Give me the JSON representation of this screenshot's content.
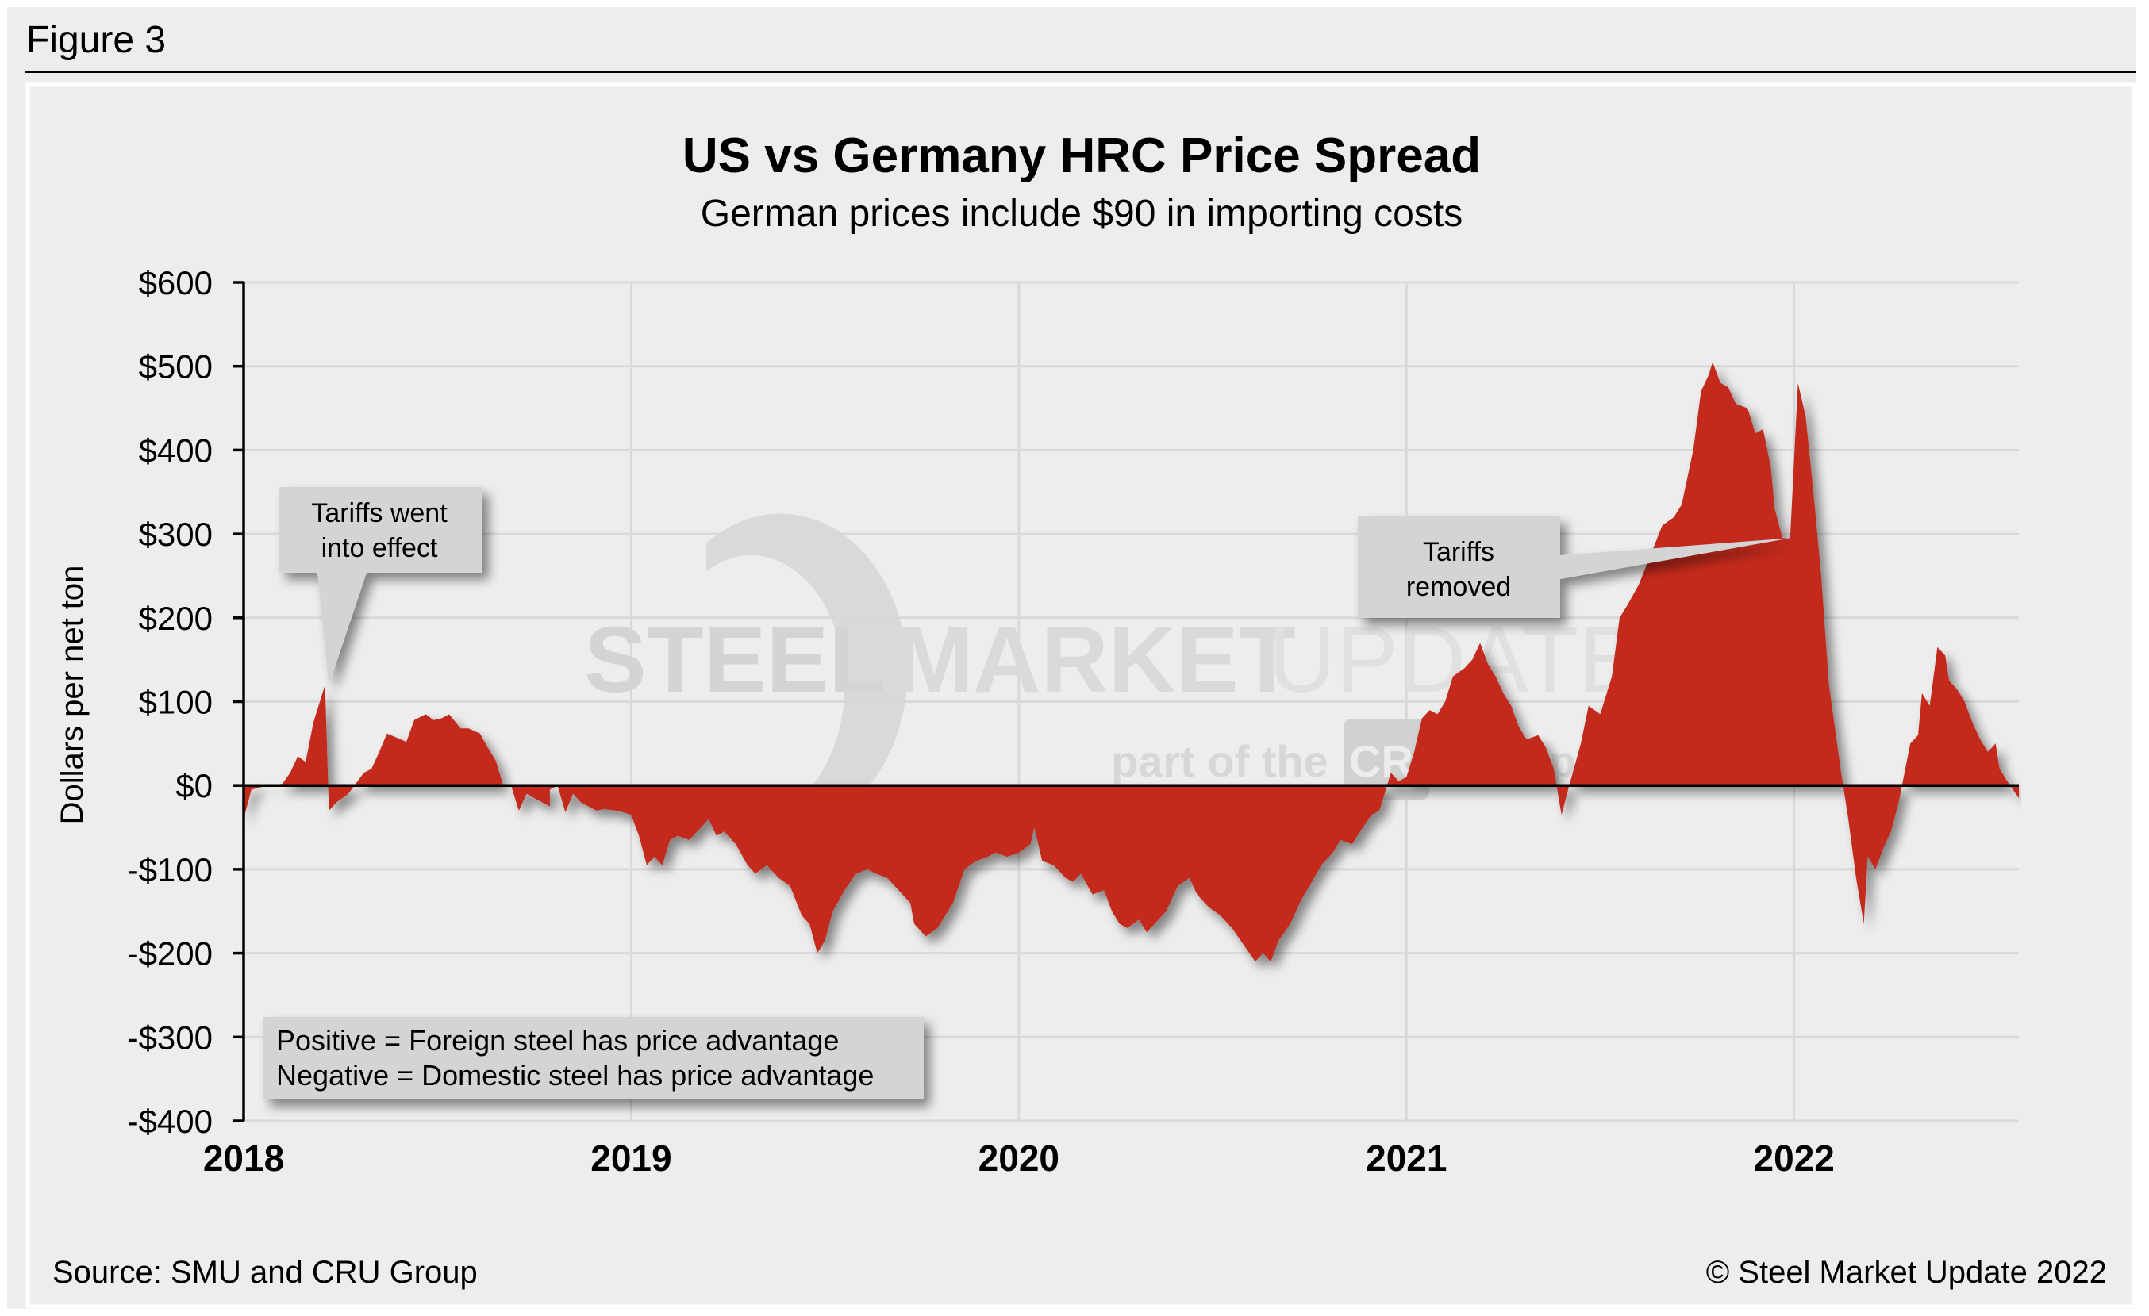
{
  "figure_label": "Figure 3",
  "footer": {
    "source": "Source: SMU and CRU Group",
    "copyright": "© Steel Market Update 2022"
  },
  "watermark": {
    "brand_bold": "STEEL",
    "brand_mid": "MARKET",
    "brand_light": "UPDATE",
    "tagline_prefix": "part of the",
    "tagline_badge": "CRU",
    "tagline_suffix": "Group"
  },
  "colors": {
    "area_fill": "#c42a1f",
    "background": "#ededed",
    "gridline": "#d9d9d9",
    "callout_fill": "#d4d4d4"
  },
  "chart_data": {
    "type": "area",
    "title": "US vs Germany HRC Price Spread",
    "subtitle": "German prices include $90 in importing costs",
    "xlabel": "",
    "ylabel": "Dollars per net ton",
    "xlim": [
      2018.0,
      2022.58
    ],
    "ylim": [
      -400,
      600
    ],
    "y_ticks": [
      600,
      500,
      400,
      300,
      200,
      100,
      0,
      -100,
      -200,
      -300,
      -400
    ],
    "y_tick_labels": [
      "$600",
      "$500",
      "$400",
      "$300",
      "$200",
      "$100",
      "$0",
      "-$100",
      "-$200",
      "-$300",
      "-$400"
    ],
    "x_ticks": [
      2018,
      2019,
      2020,
      2021,
      2022
    ],
    "x_tick_labels": [
      "2018",
      "2019",
      "2020",
      "2021",
      "2022"
    ],
    "grid": true,
    "legend": null,
    "annotations": [
      {
        "text_lines": [
          "Tariffs went",
          "into effect"
        ],
        "x": 2018.22,
        "y": 120
      },
      {
        "text_lines": [
          "Tariffs",
          "removed"
        ],
        "x": 2021.99,
        "y": 295
      }
    ],
    "note_lines": [
      "Positive = Foreign steel has price advantage",
      "Negative = Domestic steel has price advantage"
    ],
    "series": [
      {
        "name": "US vs Germany HRC price spread",
        "x": [
          2018.0,
          2018.02,
          2018.06,
          2018.1,
          2018.12,
          2018.14,
          2018.16,
          2018.18,
          2018.2,
          2018.21,
          2018.22,
          2018.24,
          2018.27,
          2018.31,
          2018.33,
          2018.35,
          2018.37,
          2018.39,
          2018.42,
          2018.44,
          2018.47,
          2018.49,
          2018.51,
          2018.53,
          2018.56,
          2018.58,
          2018.61,
          2018.63,
          2018.65,
          2018.67,
          2018.69,
          2018.71,
          2018.73,
          2018.79,
          2018.79,
          2018.81,
          2018.83,
          2018.85,
          2018.87,
          2018.89,
          2018.91,
          2018.93,
          2018.96,
          2018.98,
          2019.0,
          2019.02,
          2019.04,
          2019.06,
          2019.08,
          2019.1,
          2019.12,
          2019.15,
          2019.17,
          2019.2,
          2019.22,
          2019.24,
          2019.27,
          2019.3,
          2019.32,
          2019.35,
          2019.38,
          2019.41,
          2019.44,
          2019.46,
          2019.48,
          2019.5,
          2019.52,
          2019.55,
          2019.58,
          2019.61,
          2019.63,
          2019.66,
          2019.69,
          2019.72,
          2019.73,
          2019.76,
          2019.79,
          2019.83,
          2019.86,
          2019.89,
          2019.92,
          2019.94,
          2019.97,
          2020.0,
          2020.03,
          2020.04,
          2020.06,
          2020.09,
          2020.12,
          2020.14,
          2020.16,
          2020.19,
          2020.22,
          2020.24,
          2020.26,
          2020.28,
          2020.31,
          2020.33,
          2020.35,
          2020.38,
          2020.41,
          2020.44,
          2020.46,
          2020.49,
          2020.52,
          2020.55,
          2020.58,
          2020.61,
          2020.63,
          2020.65,
          2020.67,
          2020.7,
          2020.73,
          2020.75,
          2020.78,
          2020.81,
          2020.83,
          2020.86,
          2020.88,
          2020.91,
          2020.93,
          2020.95,
          2020.96,
          2020.98,
          2021.0,
          2021.02,
          2021.04,
          2021.06,
          2021.08,
          2021.1,
          2021.12,
          2021.15,
          2021.17,
          2021.19,
          2021.21,
          2021.23,
          2021.25,
          2021.27,
          2021.29,
          2021.31,
          2021.34,
          2021.36,
          2021.38,
          2021.4,
          2021.42,
          2021.45,
          2021.47,
          2021.5,
          2021.53,
          2021.55,
          2021.57,
          2021.6,
          2021.63,
          2021.66,
          2021.69,
          2021.71,
          2021.74,
          2021.76,
          2021.78,
          2021.79,
          2021.81,
          2021.83,
          2021.85,
          2021.88,
          2021.9,
          2021.92,
          2021.94,
          2021.95,
          2021.97,
          2021.99,
          2022.01,
          2022.03,
          2022.05,
          2022.07,
          2022.09,
          2022.12,
          2022.14,
          2022.16,
          2022.18,
          2022.19,
          2022.21,
          2022.23,
          2022.25,
          2022.27,
          2022.3,
          2022.32,
          2022.33,
          2022.35,
          2022.37,
          2022.39,
          2022.4,
          2022.42,
          2022.44,
          2022.46,
          2022.48,
          2022.5,
          2022.52,
          2022.53,
          2022.55,
          2022.58
        ],
        "y": [
          -40,
          -5,
          0,
          2,
          15,
          35,
          28,
          75,
          105,
          120,
          -30,
          -20,
          -10,
          15,
          20,
          40,
          62,
          58,
          52,
          78,
          85,
          78,
          80,
          85,
          68,
          68,
          62,
          45,
          30,
          0,
          0,
          -30,
          -10,
          -25,
          -5,
          0,
          -32,
          -10,
          -20,
          -25,
          -30,
          -28,
          -30,
          -32,
          -35,
          -60,
          -95,
          -85,
          -95,
          -65,
          -60,
          -65,
          -55,
          -40,
          -60,
          -55,
          -70,
          -95,
          -105,
          -95,
          -110,
          -120,
          -155,
          -165,
          -200,
          -185,
          -150,
          -125,
          -105,
          -100,
          -105,
          -110,
          -125,
          -140,
          -165,
          -180,
          -170,
          -140,
          -100,
          -90,
          -85,
          -80,
          -85,
          -80,
          -70,
          -50,
          -90,
          -95,
          -110,
          -115,
          -105,
          -130,
          -125,
          -150,
          -165,
          -170,
          -160,
          -175,
          -165,
          -150,
          -120,
          -110,
          -130,
          -145,
          -155,
          -170,
          -190,
          -210,
          -200,
          -210,
          -185,
          -165,
          -135,
          -120,
          -95,
          -80,
          -65,
          -70,
          -55,
          -35,
          -30,
          0,
          15,
          5,
          10,
          40,
          80,
          90,
          85,
          100,
          130,
          140,
          150,
          170,
          145,
          130,
          110,
          95,
          70,
          55,
          60,
          45,
          20,
          -35,
          0,
          50,
          95,
          85,
          130,
          200,
          215,
          240,
          275,
          310,
          320,
          335,
          400,
          470,
          490,
          505,
          480,
          475,
          455,
          450,
          420,
          425,
          380,
          330,
          295,
          295,
          480,
          440,
          350,
          250,
          120,
          20,
          -40,
          -110,
          -165,
          -85,
          -100,
          -75,
          -55,
          -20,
          50,
          60,
          110,
          95,
          165,
          155,
          125,
          115,
          100,
          75,
          55,
          40,
          50,
          20,
          5,
          -15
        ]
      }
    ]
  }
}
